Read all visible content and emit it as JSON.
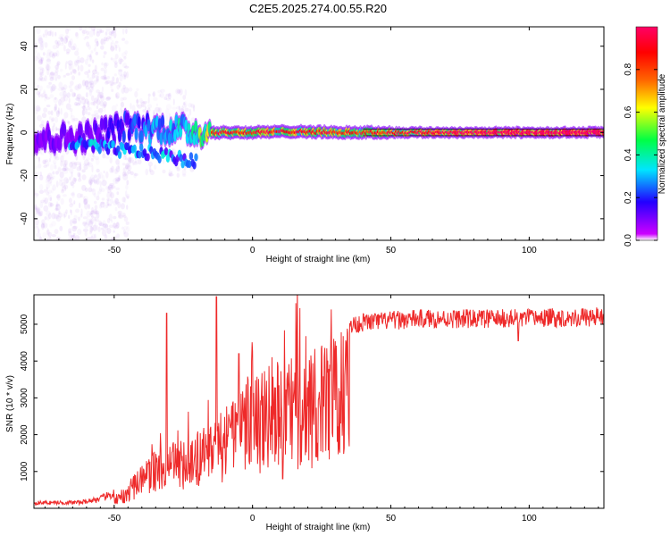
{
  "title": "C2E5.2025.274.00.55.R20",
  "chart_data": [
    {
      "type": "heatmap",
      "name": "spectrogram",
      "title": "C2E5.2025.274.00.55.R20",
      "xlabel": "Height of straight line (km)",
      "ylabel": "Frequency (Hz)",
      "xlim": [
        -79,
        127
      ],
      "ylim": [
        -50,
        49
      ],
      "xticks": [
        -50,
        0,
        50,
        100
      ],
      "yticks": [
        -40,
        -20,
        0,
        20,
        40
      ],
      "colorbar": {
        "label": "Normalized spectral amplitude",
        "range": [
          0.0,
          1.0
        ],
        "ticks": [
          "0.0",
          "0.2",
          "0.4",
          "0.6",
          "0.8"
        ],
        "tick_values": [
          0.0,
          0.2,
          0.4,
          0.6,
          0.8
        ],
        "colormap_colors": [
          "#ffffff",
          "#cc00ff",
          "#2200ff",
          "#00e5ff",
          "#00ff44",
          "#ffff00",
          "#ff6600",
          "#ff0000",
          "#ff0066"
        ]
      },
      "main_tone": [
        {
          "x": -78,
          "f": -3,
          "amp": 0.12
        },
        {
          "x": -60,
          "f": -2,
          "amp": 0.12
        },
        {
          "x": -45,
          "f": 3,
          "amp": 0.22
        },
        {
          "x": -35,
          "f": 2,
          "amp": 0.32
        },
        {
          "x": -25,
          "f": 1,
          "amp": 0.4
        },
        {
          "x": -15,
          "f": 0,
          "amp": 0.62
        },
        {
          "x": 0,
          "f": 0,
          "amp": 0.6
        },
        {
          "x": 15,
          "f": 0.5,
          "amp": 0.62
        },
        {
          "x": 30,
          "f": 0,
          "amp": 0.58
        },
        {
          "x": 50,
          "f": 0,
          "amp": 0.6
        },
        {
          "x": 70,
          "f": 0,
          "amp": 0.72
        },
        {
          "x": 100,
          "f": 0,
          "amp": 0.85
        },
        {
          "x": 127,
          "f": 0,
          "amp": 0.95
        }
      ],
      "lower_branch": [
        {
          "x": -65,
          "f": -5
        },
        {
          "x": -50,
          "f": -8
        },
        {
          "x": -40,
          "f": -9
        },
        {
          "x": -30,
          "f": -11
        },
        {
          "x": -20,
          "f": -14
        }
      ]
    },
    {
      "type": "line",
      "name": "snr",
      "xlabel": "Height of straight line (km)",
      "ylabel": "SNR (10 * v/v)",
      "xlim": [
        -79,
        127
      ],
      "ylim": [
        0,
        5800
      ],
      "xticks": [
        -50,
        0,
        50,
        100
      ],
      "yticks": [
        1000,
        2000,
        3000,
        4000,
        5000
      ],
      "color": "#ee2a2a",
      "envelope": [
        {
          "x": -79,
          "y": 150
        },
        {
          "x": -62,
          "y": 160
        },
        {
          "x": -55,
          "y": 260
        },
        {
          "x": -48,
          "y": 450
        },
        {
          "x": -42,
          "y": 1000
        },
        {
          "x": -35,
          "y": 1600
        },
        {
          "x": -25,
          "y": 2000
        },
        {
          "x": -15,
          "y": 2300
        },
        {
          "x": -5,
          "y": 3300
        },
        {
          "x": 5,
          "y": 3900
        },
        {
          "x": 15,
          "y": 4100
        },
        {
          "x": 25,
          "y": 4450
        },
        {
          "x": 32,
          "y": 4900
        },
        {
          "x": 40,
          "y": 5050
        },
        {
          "x": 60,
          "y": 5150
        },
        {
          "x": 90,
          "y": 5150
        },
        {
          "x": 127,
          "y": 5200
        }
      ],
      "peaks": [
        {
          "x": -31,
          "y": 5300
        },
        {
          "x": -13,
          "y": 5750
        },
        {
          "x": -5,
          "y": 4200
        },
        {
          "x": 11,
          "y": 800
        },
        {
          "x": 96,
          "y": 4550
        }
      ]
    }
  ]
}
